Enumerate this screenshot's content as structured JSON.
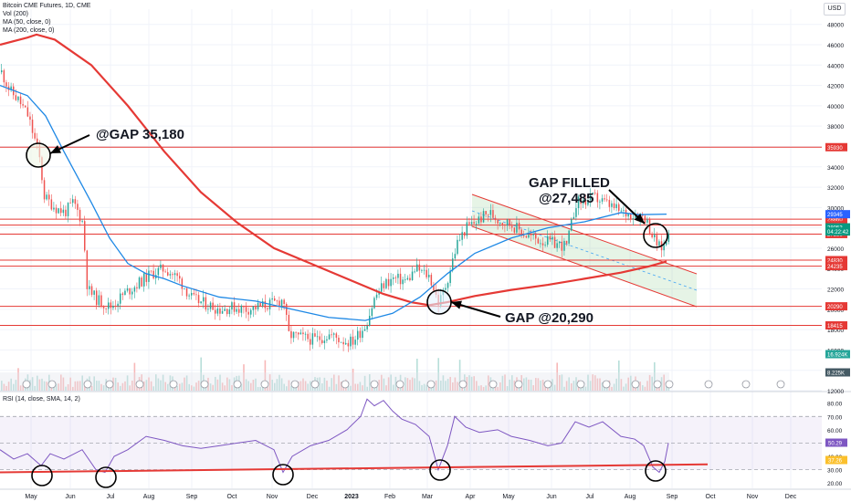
{
  "header": {
    "title": "Bitcoin CME Futures, 1D, CME",
    "lines": [
      "Vol (200)",
      "MA (50, close, 0)",
      "MA (200, close, 0)"
    ],
    "currency": "USD"
  },
  "rsi_header": "RSI (14, close, SMA, 14, 2)",
  "chart_data": [
    {
      "type": "line",
      "panel": "price",
      "xlabel": "",
      "ylabel": "",
      "x_ticks": [
        "May",
        "Jun",
        "Jul",
        "Aug",
        "Sep",
        "Oct",
        "Nov",
        "Dec",
        "2023",
        "Feb",
        "Mar",
        "Apr",
        "May",
        "Jun",
        "Jul",
        "Aug",
        "Sep",
        "Oct",
        "Nov",
        "Dec"
      ],
      "y_ticks": [
        48000,
        46000,
        44000,
        42000,
        40000,
        38000,
        36000,
        34000,
        32000,
        30000,
        28000,
        26000,
        24000,
        22000,
        20000,
        18000,
        16000,
        14000,
        12000
      ],
      "ylim": [
        12000,
        49500
      ],
      "grid": true,
      "horizontal_levels": [
        35930,
        28860,
        28270,
        27390,
        24830,
        24235,
        20290,
        18415
      ],
      "level_labels": [
        "35930",
        "28860",
        "28270",
        "27390",
        "24830",
        "24235",
        "20290",
        "18415"
      ],
      "price_labels": [
        {
          "text": "29345",
          "value": 29345,
          "color": "#2962ff"
        },
        {
          "text": "28053",
          "value": 28053,
          "color": "#089981"
        },
        {
          "text": "04:22:42",
          "value": 27640,
          "color": "#089981"
        }
      ],
      "volume_labels": [
        {
          "text": "16.924K",
          "color": "#26a69a"
        },
        {
          "text": "8.225K",
          "color": "#455a64"
        }
      ],
      "annotations": [
        "@GAP 35,180",
        "GAP FILLED",
        "@27,485",
        "GAP @20,290"
      ],
      "series": [
        {
          "name": "MA (200, close, 0)",
          "color": "#e53935",
          "points": [
            [
              0,
              46000
            ],
            [
              30,
              46700
            ],
            [
              40,
              47000
            ],
            [
              60,
              46500
            ],
            [
              100,
              44000
            ],
            [
              140,
              40000
            ],
            [
              180,
              35500
            ],
            [
              220,
              31500
            ],
            [
              260,
              28500
            ],
            [
              300,
              26000
            ],
            [
              340,
              24500
            ],
            [
              380,
              23000
            ],
            [
              420,
              21500
            ],
            [
              450,
              20700
            ],
            [
              470,
              20400
            ],
            [
              490,
              20700
            ],
            [
              520,
              21300
            ],
            [
              560,
              21900
            ],
            [
              600,
              22400
            ],
            [
              640,
              23000
            ],
            [
              680,
              23600
            ],
            [
              710,
              24200
            ],
            [
              730,
              24700
            ]
          ]
        },
        {
          "name": "MA (50, close, 0)",
          "color": "#1e88e5",
          "points": [
            [
              0,
              42000
            ],
            [
              30,
              41000
            ],
            [
              50,
              39000
            ],
            [
              70,
              35500
            ],
            [
              100,
              30500
            ],
            [
              120,
              27000
            ],
            [
              140,
              24500
            ],
            [
              160,
              23500
            ],
            [
              180,
              23000
            ],
            [
              200,
              22300
            ],
            [
              240,
              21200
            ],
            [
              280,
              20800
            ],
            [
              320,
              20000
            ],
            [
              360,
              19200
            ],
            [
              400,
              18900
            ],
            [
              430,
              19600
            ],
            [
              460,
              21200
            ],
            [
              490,
              23500
            ],
            [
              520,
              25500
            ],
            [
              560,
              27000
            ],
            [
              600,
              28000
            ],
            [
              640,
              28600
            ],
            [
              680,
              29500
            ],
            [
              700,
              29300
            ],
            [
              730,
              29345
            ]
          ]
        },
        {
          "name": "close",
          "color": "#26a69a",
          "points": [
            [
              0,
              43500
            ],
            [
              10,
              41500
            ],
            [
              20,
              40500
            ],
            [
              30,
              39000
            ],
            [
              42,
              35200
            ],
            [
              48,
              31000
            ],
            [
              60,
              30000
            ],
            [
              70,
              29500
            ],
            [
              80,
              30500
            ],
            [
              90,
              28500
            ],
            [
              95,
              22000
            ],
            [
              105,
              21000
            ],
            [
              120,
              20200
            ],
            [
              135,
              21500
            ],
            [
              150,
              22500
            ],
            [
              165,
              23500
            ],
            [
              180,
              24000
            ],
            [
              195,
              23000
            ],
            [
              210,
              21000
            ],
            [
              225,
              20500
            ],
            [
              240,
              20000
            ],
            [
              255,
              20200
            ],
            [
              270,
              20000
            ],
            [
              285,
              20300
            ],
            [
              300,
              20600
            ],
            [
              310,
              21000
            ],
            [
              315,
              17500
            ],
            [
              330,
              17200
            ],
            [
              345,
              17000
            ],
            [
              360,
              17500
            ],
            [
              375,
              16900
            ],
            [
              385,
              16800
            ],
            [
              400,
              18500
            ],
            [
              410,
              21200
            ],
            [
              420,
              22500
            ],
            [
              430,
              23000
            ],
            [
              445,
              22800
            ],
            [
              455,
              24000
            ],
            [
              470,
              23200
            ],
            [
              480,
              20500
            ],
            [
              488,
              22500
            ],
            [
              500,
              26500
            ],
            [
              510,
              28000
            ],
            [
              520,
              28600
            ],
            [
              535,
              29500
            ],
            [
              545,
              28800
            ],
            [
              560,
              28300
            ],
            [
              575,
              27300
            ],
            [
              590,
              26800
            ],
            [
              605,
              26500
            ],
            [
              620,
              26200
            ],
            [
              630,
              30500
            ],
            [
              640,
              30600
            ],
            [
              650,
              31000
            ],
            [
              665,
              30300
            ],
            [
              680,
              29500
            ],
            [
              695,
              29300
            ],
            [
              705,
              29200
            ],
            [
              715,
              27000
            ],
            [
              722,
              26000
            ],
            [
              728,
              26300
            ],
            [
              732,
              28053
            ]
          ]
        }
      ]
    },
    {
      "type": "line",
      "panel": "rsi",
      "xlabel": "",
      "ylabel": "",
      "y_ticks": [
        80.0,
        70.0,
        60.0,
        50.0,
        40.0,
        30.0,
        20.0
      ],
      "ylim": [
        16,
        88
      ],
      "bands": [
        30,
        70
      ],
      "value_labels": [
        {
          "text": "50.29",
          "color": "#7e57c2"
        },
        {
          "text": "37.26",
          "color": "#fbc02d"
        }
      ],
      "series": [
        {
          "name": "RSI",
          "color": "#7e57c2",
          "points": [
            [
              0,
              45
            ],
            [
              15,
              38
            ],
            [
              30,
              42
            ],
            [
              45,
              33
            ],
            [
              55,
              42
            ],
            [
              70,
              38
            ],
            [
              90,
              45
            ],
            [
              105,
              30
            ],
            [
              115,
              28
            ],
            [
              125,
              40
            ],
            [
              140,
              45
            ],
            [
              160,
              55
            ],
            [
              180,
              52
            ],
            [
              200,
              48
            ],
            [
              220,
              46
            ],
            [
              240,
              48
            ],
            [
              260,
              50
            ],
            [
              280,
              52
            ],
            [
              300,
              45
            ],
            [
              310,
              28
            ],
            [
              320,
              40
            ],
            [
              340,
              48
            ],
            [
              360,
              52
            ],
            [
              380,
              60
            ],
            [
              395,
              70
            ],
            [
              402,
              83
            ],
            [
              410,
              78
            ],
            [
              420,
              82
            ],
            [
              430,
              74
            ],
            [
              440,
              68
            ],
            [
              455,
              64
            ],
            [
              470,
              55
            ],
            [
              480,
              30
            ],
            [
              490,
              48
            ],
            [
              498,
              70
            ],
            [
              510,
              62
            ],
            [
              525,
              58
            ],
            [
              545,
              60
            ],
            [
              560,
              55
            ],
            [
              580,
              52
            ],
            [
              600,
              48
            ],
            [
              615,
              50
            ],
            [
              630,
              66
            ],
            [
              645,
              62
            ],
            [
              660,
              66
            ],
            [
              680,
              55
            ],
            [
              695,
              53
            ],
            [
              705,
              48
            ],
            [
              715,
              32
            ],
            [
              722,
              28
            ],
            [
              728,
              36
            ],
            [
              732,
              50
            ]
          ]
        }
      ]
    }
  ]
}
